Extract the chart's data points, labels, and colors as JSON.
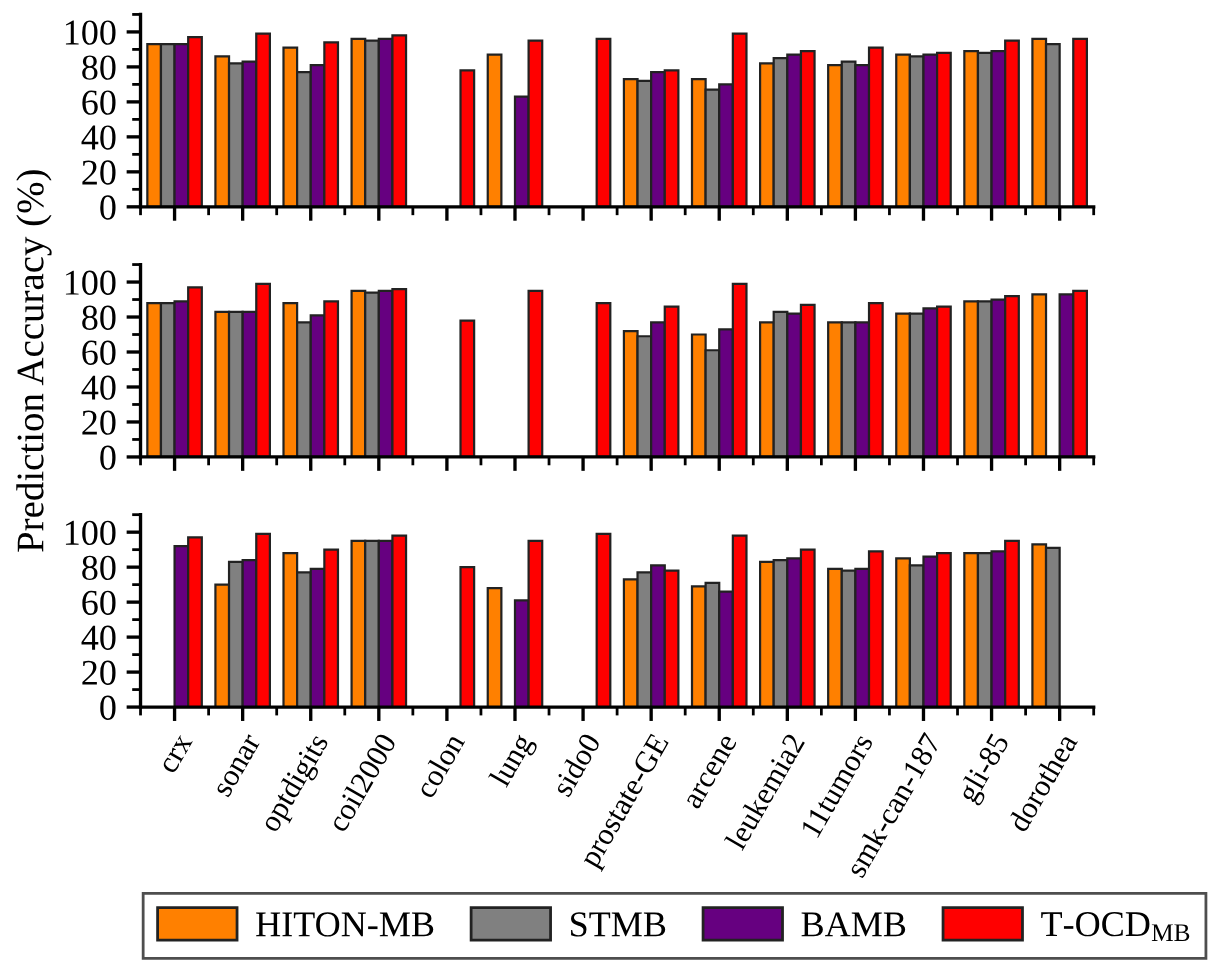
{
  "chart_data": [
    {
      "type": "bar",
      "categories": [
        null,
        null,
        null,
        null,
        null,
        null,
        null,
        null,
        null,
        null,
        null,
        null,
        null,
        null
      ],
      "ylim": [
        0,
        110
      ],
      "yticks": [
        0,
        20,
        40,
        60,
        80,
        100
      ],
      "tick_labels": "y",
      "legend": "bottom",
      "series": [
        {
          "name": "HITON-MB",
          "color": "#ff8000",
          "values": [
            93,
            86,
            91,
            96,
            null,
            87,
            null,
            73,
            73,
            82,
            81,
            87,
            89,
            96
          ]
        },
        {
          "name": "STMB",
          "color": "#808080",
          "values": [
            93,
            82,
            77,
            95,
            null,
            null,
            null,
            72,
            67,
            85,
            83,
            86,
            88,
            93
          ]
        },
        {
          "name": "BAMB",
          "color": "#660080",
          "values": [
            93,
            83,
            81,
            96,
            null,
            63,
            null,
            77,
            70,
            87,
            81,
            87,
            89,
            null
          ]
        },
        {
          "name": "T-OCD$_{MB}$",
          "color": "#ff0000",
          "values": [
            97,
            99,
            94,
            98,
            78,
            95,
            96,
            78,
            99,
            89,
            91,
            88,
            95,
            96
          ]
        }
      ]
    },
    {
      "type": "bar",
      "ylabel": "Prediction Accuracy (%)",
      "categories": [
        null,
        null,
        null,
        null,
        null,
        null,
        null,
        null,
        null,
        null,
        null,
        null,
        null,
        null
      ],
      "ylim": [
        0,
        110
      ],
      "yticks": [
        0,
        20,
        40,
        60,
        80,
        100
      ],
      "tick_labels": "y",
      "series": [
        {
          "color": "#ff8000",
          "values": [
            88,
            83,
            88,
            95,
            null,
            null,
            null,
            72,
            70,
            77,
            77,
            82,
            89,
            93
          ]
        },
        {
          "color": "#808080",
          "values": [
            88,
            83,
            77,
            94,
            null,
            null,
            null,
            69,
            61,
            83,
            77,
            82,
            89,
            null
          ]
        },
        {
          "color": "#660080",
          "values": [
            89,
            83,
            81,
            95,
            null,
            null,
            null,
            77,
            73,
            82,
            77,
            85,
            90,
            93
          ]
        },
        {
          "color": "#ff0000",
          "values": [
            97,
            99,
            89,
            96,
            78,
            95,
            88,
            86,
            99,
            87,
            88,
            86,
            92,
            95
          ]
        }
      ]
    },
    {
      "type": "bar",
      "categories": [
        "crx",
        "sonar",
        "optdigits",
        "coil2000",
        "colon",
        "lung",
        "sido0",
        "prostate-GE",
        "arcene",
        "leukemia2",
        "11tumors",
        "smk-can-187",
        "gli-85",
        "dorothea"
      ],
      "ylim": [
        0,
        110
      ],
      "yticks": [
        0,
        20,
        40,
        60,
        80,
        100
      ],
      "series": [
        {
          "color": "#ff8000",
          "values": [
            null,
            70,
            88,
            95,
            null,
            68,
            null,
            73,
            69,
            83,
            79,
            85,
            88,
            93
          ]
        },
        {
          "color": "#808080",
          "values": [
            null,
            83,
            77,
            95,
            null,
            null,
            null,
            77,
            71,
            84,
            78,
            81,
            88,
            91
          ]
        },
        {
          "color": "#660080",
          "values": [
            92,
            84,
            79,
            95,
            null,
            61,
            null,
            81,
            66,
            85,
            79,
            86,
            89,
            null
          ]
        },
        {
          "color": "#ff0000",
          "values": [
            97,
            99,
            90,
            98,
            80,
            95,
            99,
            78,
            98,
            90,
            89,
            88,
            95,
            null
          ]
        }
      ]
    }
  ]
}
